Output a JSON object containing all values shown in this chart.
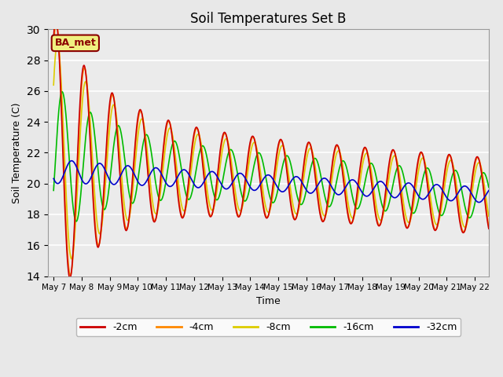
{
  "title": "Soil Temperatures Set B",
  "xlabel": "Time",
  "ylabel": "Soil Temperature (C)",
  "ylim": [
    14,
    30
  ],
  "xlim_days": [
    -0.2,
    15.5
  ],
  "annotation": "BA_met",
  "background_color": "#e8e8e8",
  "plot_bg_color": "#ebebeb",
  "series": {
    "-2cm": {
      "color": "#cc0000",
      "lw": 1.2
    },
    "-4cm": {
      "color": "#ff8800",
      "lw": 1.2
    },
    "-8cm": {
      "color": "#ddcc00",
      "lw": 1.2
    },
    "-16cm": {
      "color": "#00bb00",
      "lw": 1.2
    },
    "-32cm": {
      "color": "#0000cc",
      "lw": 1.2
    }
  },
  "tick_labels": [
    "May 7",
    "May 8",
    "May 9",
    "May 10",
    "May 11",
    "May 12",
    "May 13",
    "May 14",
    "May 15",
    "May 16",
    "May 17",
    "May 18",
    "May 19",
    "May 20",
    "May 21",
    "May 22"
  ],
  "yticks": [
    14,
    16,
    18,
    20,
    22,
    24,
    26,
    28,
    30
  ]
}
